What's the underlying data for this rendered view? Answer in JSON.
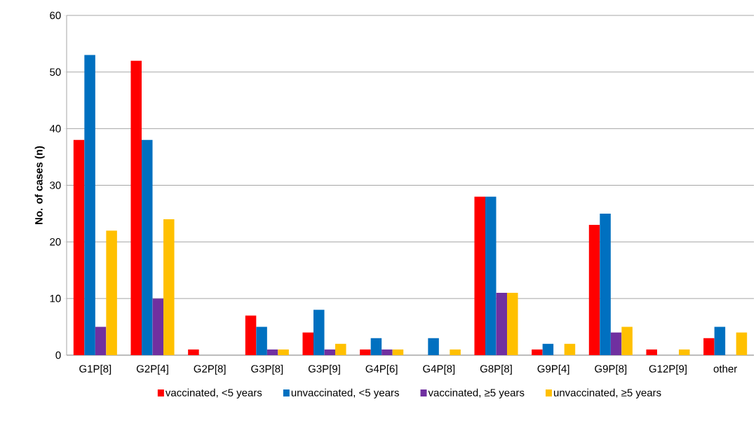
{
  "chart_data": {
    "type": "bar",
    "ylabel": "No. of cases (n)",
    "categories": [
      "G1P[8]",
      "G2P[4]",
      "G2P[8]",
      "G3P[8]",
      "G3P[9]",
      "G4P[6]",
      "G4P[8]",
      "G8P[8]",
      "G9P[4]",
      "G9P[8]",
      "G12P[9]",
      "other"
    ],
    "series": [
      {
        "name": "vaccinated, <5 years",
        "color": "#ff0000",
        "values": [
          38,
          52,
          1,
          7,
          4,
          1,
          0,
          28,
          1,
          23,
          1,
          3
        ]
      },
      {
        "name": "unvaccinated, <5 years",
        "color": "#0070c0",
        "values": [
          53,
          38,
          0,
          5,
          8,
          3,
          3,
          28,
          2,
          25,
          0,
          5
        ]
      },
      {
        "name": "vaccinated, ≥5 years",
        "color": "#7030a0",
        "values": [
          5,
          10,
          0,
          1,
          1,
          1,
          0,
          11,
          0,
          4,
          0,
          0
        ]
      },
      {
        "name": "unvaccinated, ≥5 years",
        "color": "#ffc000",
        "values": [
          22,
          24,
          0,
          1,
          2,
          1,
          1,
          11,
          2,
          5,
          1,
          4
        ]
      }
    ],
    "ylim": [
      0,
      60
    ],
    "yticks": [
      0,
      10,
      20,
      30,
      40,
      50,
      60
    ],
    "grid": "y",
    "legend": "bottom"
  }
}
